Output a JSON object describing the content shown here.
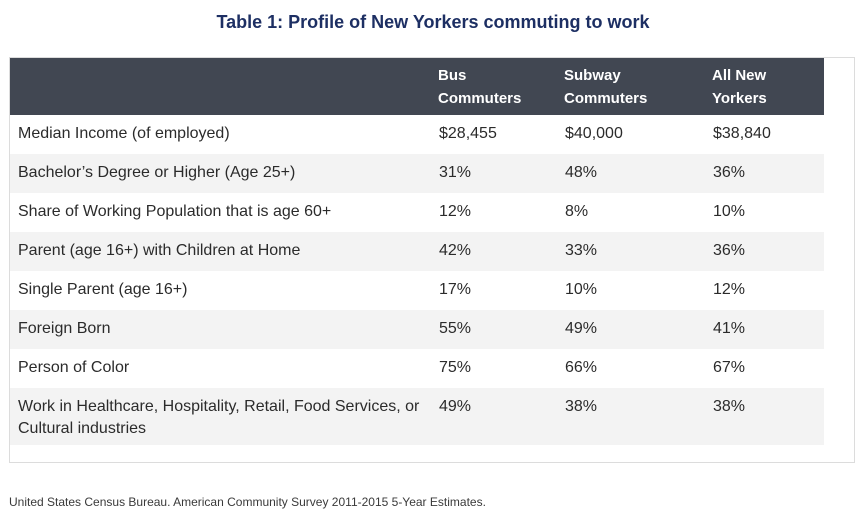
{
  "title": "Table 1: Profile of New Yorkers commuting to work",
  "table": {
    "headers": [
      "",
      "Bus Commuters",
      "Subway Commuters",
      "All New Yorkers"
    ],
    "rows": [
      [
        "Median Income (of employed)",
        "$28,455",
        "$40,000",
        "$38,840"
      ],
      [
        "Bachelor’s Degree or Higher (Age 25+)",
        "31%",
        "48%",
        "36%"
      ],
      [
        "Share of Working Population that is age 60+",
        "12%",
        "8%",
        "10%"
      ],
      [
        "Parent (age 16+) with Children at Home",
        "42%",
        "33%",
        "36%"
      ],
      [
        "Single Parent (age 16+)",
        "17%",
        "10%",
        "12%"
      ],
      [
        "Foreign Born",
        "55%",
        "49%",
        "41%"
      ],
      [
        "Person of Color",
        "75%",
        "66%",
        "67%"
      ],
      [
        "Work in Healthcare, Hospitality, Retail, Food Services, or Cultural industries",
        "49%",
        "38%",
        "38%"
      ]
    ]
  },
  "source": "United States Census Bureau. American Community Survey 2011-2015 5-Year Estimates."
}
